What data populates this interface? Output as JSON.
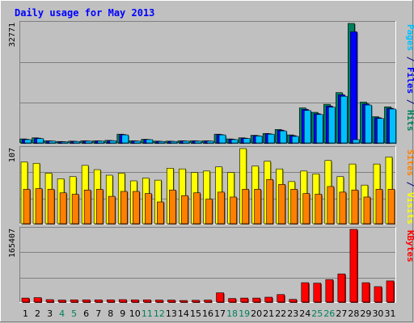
{
  "chart_data": {
    "type": "bar",
    "title": "Daily usage for May 2013",
    "categories": [
      "1",
      "2",
      "3",
      "4",
      "5",
      "6",
      "7",
      "8",
      "9",
      "10",
      "11",
      "12",
      "13",
      "14",
      "15",
      "16",
      "17",
      "18",
      "19",
      "20",
      "21",
      "22",
      "23",
      "24",
      "25",
      "26",
      "27",
      "28",
      "29",
      "30",
      "31"
    ],
    "weekend_days": [
      "4",
      "5",
      "11",
      "12",
      "18",
      "19",
      "25",
      "26"
    ],
    "panels": [
      {
        "id": "files",
        "max_label": "32771",
        "ylim": [
          0,
          32771
        ],
        "legend": [
          {
            "label": "Pages",
            "color": "#00c0ff"
          },
          {
            "label": " / ",
            "color": "#000080"
          },
          {
            "label": "Files",
            "color": "#0000ff"
          },
          {
            "label": " / ",
            "color": "#000080"
          },
          {
            "label": "Hits",
            "color": "#00805c"
          }
        ],
        "series": [
          {
            "name": "Hits",
            "color": "#00805c",
            "values": [
              1100,
              1400,
              600,
              400,
              500,
              600,
              600,
              700,
              2400,
              600,
              1000,
              500,
              500,
              600,
              600,
              600,
              2400,
              1100,
              1400,
              2100,
              2600,
              3700,
              2200,
              9600,
              8400,
              10600,
              13800,
              32771,
              11200,
              7200,
              9900
            ]
          },
          {
            "name": "Files",
            "color": "#0000ff",
            "values": [
              1000,
              1300,
              550,
              350,
              450,
              550,
              550,
              650,
              2300,
              550,
              950,
              450,
              450,
              550,
              550,
              550,
              2300,
              1000,
              1300,
              2000,
              2500,
              3500,
              2000,
              9200,
              8000,
              10100,
              13200,
              30500,
              10700,
              6900,
              9500
            ]
          },
          {
            "name": "Pages",
            "color": "#00c0ff",
            "values": [
              900,
              1200,
              500,
              300,
              400,
              500,
              500,
              600,
              2200,
              500,
              900,
              400,
              400,
              500,
              500,
              500,
              2200,
              900,
              1200,
              1900,
              2400,
              3300,
              1800,
              8900,
              7800,
              9800,
              12800,
              900,
              10400,
              6700,
              9300
            ]
          }
        ]
      },
      {
        "id": "visits",
        "max_label": "107",
        "ylim": [
          0,
          107
        ],
        "legend": [
          {
            "label": "Sites",
            "color": "#ff8000"
          },
          {
            "label": " / ",
            "color": "#000080"
          },
          {
            "label": "Visits",
            "color": "#ffff00"
          }
        ],
        "series": [
          {
            "name": "Visits",
            "color": "#ffff00",
            "values": [
              88,
              86,
              72,
              64,
              67,
              83,
              77,
              69,
              72,
              61,
              65,
              62,
              79,
              78,
              73,
              75,
              81,
              73,
              107,
              82,
              89,
              78,
              60,
              75,
              71,
              90,
              67,
              85,
              55,
              85,
              95
            ]
          },
          {
            "name": "Sites",
            "color": "#ff8000",
            "values": [
              49,
              50,
              49,
              44,
              42,
              48,
              49,
              39,
              46,
              46,
              43,
              31,
              48,
              40,
              44,
              35,
              45,
              38,
              49,
              49,
              63,
              56,
              49,
              43,
              42,
              53,
              45,
              48,
              38,
              49,
              49
            ]
          }
        ]
      },
      {
        "id": "kbytes",
        "max_label": "165407",
        "ylim": [
          0,
          165407
        ],
        "legend": [
          {
            "label": "KBytes",
            "color": "#ff0000"
          }
        ],
        "series": [
          {
            "name": "KBytes",
            "color": "#ff0000",
            "values": [
              9000,
              10000,
              5500,
              4500,
              5000,
              5000,
              5000,
              5000,
              5500,
              5000,
              5000,
              4500,
              4500,
              3500,
              4000,
              4500,
              21000,
              8000,
              9000,
              9000,
              11000,
              17000,
              6000,
              44000,
              43000,
              51000,
              64000,
              165407,
              44000,
              35000,
              48000
            ]
          }
        ]
      }
    ]
  }
}
